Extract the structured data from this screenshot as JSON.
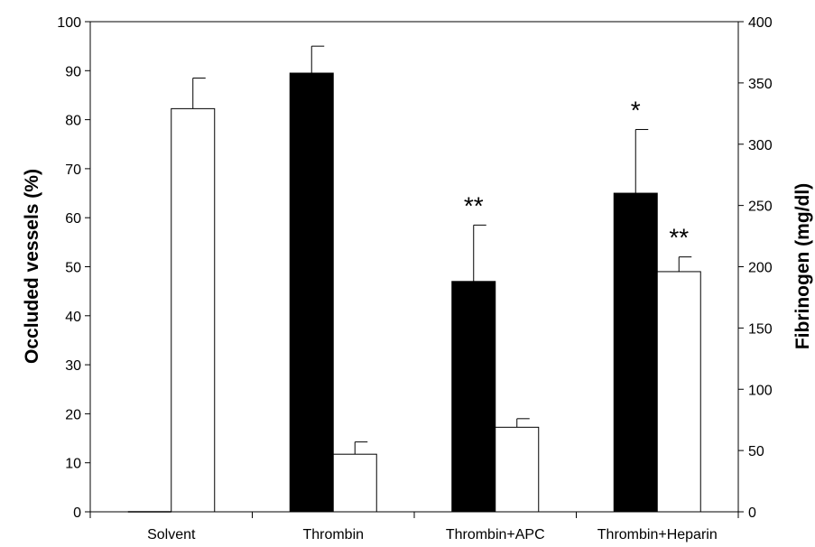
{
  "chart_data": {
    "type": "bar",
    "categories": [
      "Solvent",
      "Thrombin",
      "Thrombin+APC",
      "Thrombin+Heparin"
    ],
    "left_axis": {
      "label": "Occluded vessels (%)",
      "ylim": [
        0,
        100
      ],
      "ticks": [
        0,
        10,
        20,
        30,
        40,
        50,
        60,
        70,
        80,
        90,
        100
      ]
    },
    "right_axis": {
      "label": "Fibrinogen (mg/dl)",
      "ylim": [
        0,
        400
      ],
      "ticks": [
        0,
        50,
        100,
        150,
        200,
        250,
        300,
        350,
        400
      ]
    },
    "series": [
      {
        "axis": "left",
        "color": "#000000",
        "values": [
          0,
          89.5,
          47,
          65
        ],
        "errors": [
          0,
          5.5,
          11.5,
          13
        ]
      },
      {
        "axis": "right",
        "color": "#ffffff",
        "values": [
          329,
          47,
          69,
          196
        ],
        "errors": [
          25,
          10,
          7,
          12
        ]
      }
    ],
    "annotations": [
      {
        "category": "Thrombin+APC",
        "series": 0,
        "text": "**"
      },
      {
        "category": "Thrombin+Heparin",
        "series": 0,
        "text": "*"
      },
      {
        "category": "Thrombin+Heparin",
        "series": 1,
        "text": "**"
      }
    ],
    "grid": false,
    "legend": "none"
  }
}
